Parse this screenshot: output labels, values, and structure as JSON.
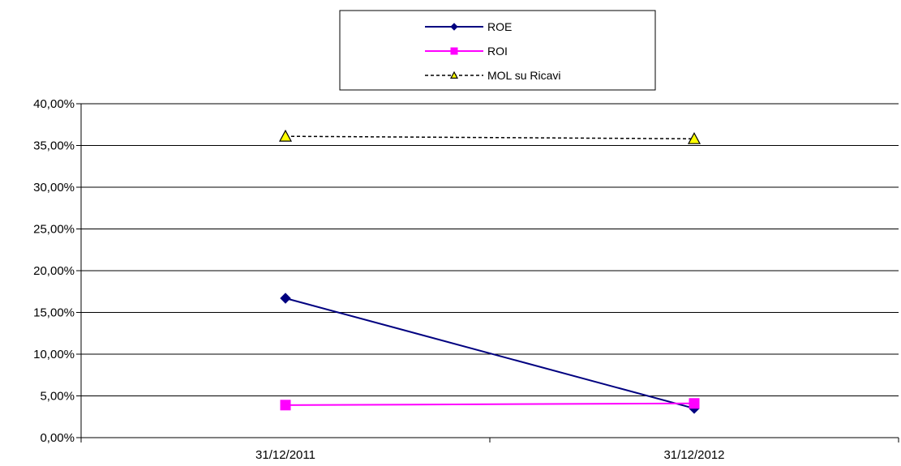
{
  "chart_data": {
    "type": "line",
    "categories": [
      "31/12/2011",
      "31/12/2012"
    ],
    "series": [
      {
        "name": "ROE",
        "values": [
          16.7,
          3.5
        ],
        "color": "#000080",
        "marker": "diamond",
        "dash": false
      },
      {
        "name": "ROI",
        "values": [
          3.9,
          4.1
        ],
        "color": "#ff00ff",
        "marker": "square",
        "dash": false
      },
      {
        "name": "MOL su Ricavi",
        "values": [
          36.1,
          35.8
        ],
        "color": "#000000",
        "marker": "triangle",
        "marker_fill": "#ffff00",
        "dash": true
      }
    ],
    "ylim": [
      0,
      40
    ],
    "y_ticks": [
      "0,00%",
      "5,00%",
      "10,00%",
      "15,00%",
      "20,00%",
      "25,00%",
      "30,00%",
      "35,00%",
      "40,00%"
    ],
    "y_tick_values": [
      0,
      5,
      10,
      15,
      20,
      25,
      30,
      35,
      40
    ],
    "grid": true,
    "legend_position": "top-center"
  }
}
